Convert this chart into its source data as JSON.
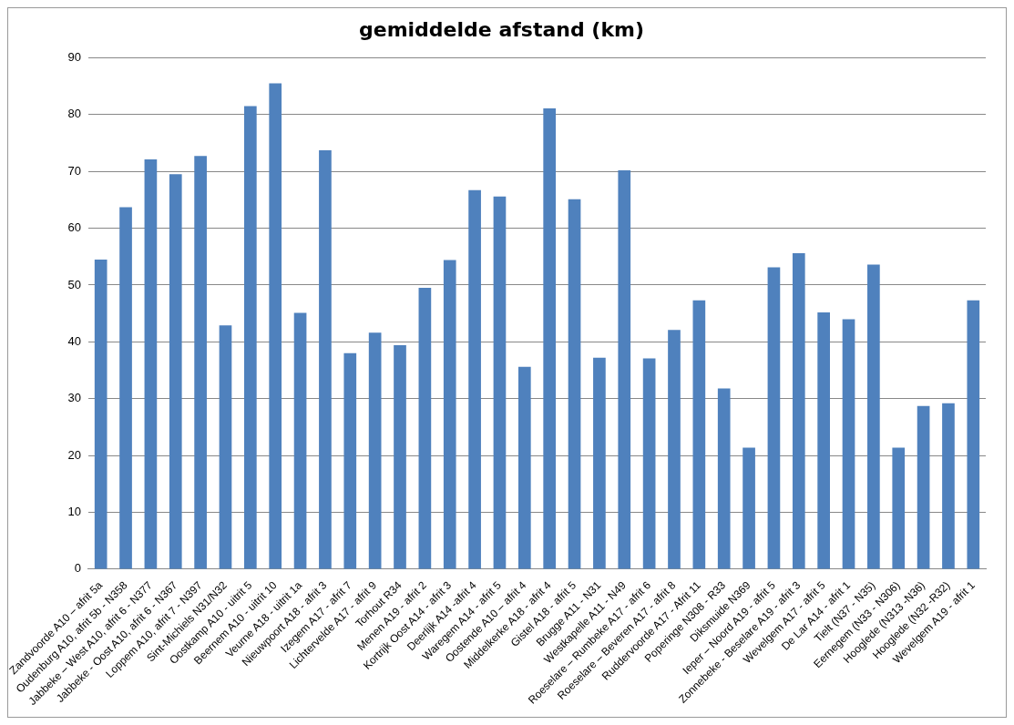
{
  "chart_data": {
    "type": "bar",
    "title": "gemiddelde afstand (km)",
    "categories": [
      "Zandvoorde A10 – afrit 5a",
      "Oudenburg A10, afrit 5b - N358",
      "Jabbeke – West A10, afrit 6 - N377",
      "Jabbeke - Oost A10, afrit 6 - N367",
      "Loppem A10, afrit 7 - N397",
      "Sint-Michiels N31/N32",
      "Oostkamp A10 - uitrit 5",
      "Beernem A10 - uitrit 10",
      "Veurne A18 - uitrit 1a",
      "Nieuwpoort A18 - afrit 3",
      "Izegem A17 - afrit 7",
      "Lichtervelde A17 - afrit 9",
      "Torhout R34",
      "Menen A19 - afrit 2",
      "Kortrijk Oost A14 - afrit 3",
      "Deerlijk A14 -afrit 4",
      "Waregem A14 - afrit 5",
      "Oostende A10 – afrit 4",
      "Middelkerke A18 - afrit 4",
      "Gistel A18 - afrit 5",
      "Brugge A11 - N31",
      "Westkapelle A11 - N49",
      "Roeselare – Rumbeke A17 - afrit 6",
      "Roeselare – Beveren A17 - afrit 8",
      "Ruddervoorde A17 - Afrit 11",
      "Poperinge N308 - R33",
      "Diksmuide N369",
      "Ieper – Noord A19 - afrit 5",
      "Zonnebeke - Beselare A19 - afrit 3",
      "Wevelgem A17 - afrit 5",
      "De Lar A14 - afrit 1",
      "Tielt (N37 - N35)",
      "Eernegem (N33 - N306)",
      "Hooglede (N313 -N36)",
      "Hooglede (N32 -R32)",
      "Wevelgem A19 - afrit 1"
    ],
    "values": [
      54.5,
      63.7,
      72.1,
      69.5,
      72.7,
      42.9,
      81.5,
      85.5,
      45.1,
      73.7,
      38.0,
      41.6,
      39.4,
      49.5,
      54.4,
      66.7,
      65.6,
      35.6,
      81.1,
      65.1,
      37.2,
      70.2,
      37.1,
      42.1,
      47.3,
      31.8,
      21.4,
      53.1,
      55.6,
      45.2,
      44.0,
      53.6,
      21.4,
      28.7,
      29.2,
      47.3
    ],
    "color": "#4f81bd",
    "ylim": [
      0,
      90
    ],
    "yticks": [
      0,
      10,
      20,
      30,
      40,
      50,
      60,
      70,
      80,
      90
    ],
    "grid": "y"
  }
}
